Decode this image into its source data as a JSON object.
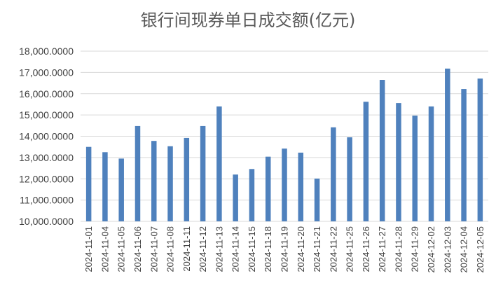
{
  "chart_data": {
    "type": "bar",
    "title": "银行间现券单日成交额(亿元)",
    "xlabel": "",
    "ylabel": "",
    "ylim": [
      10000,
      18000
    ],
    "yticks": [
      "10,000.0000",
      "11,000.0000",
      "12,000.0000",
      "13,000.0000",
      "14,000.0000",
      "15,000.0000",
      "16,000.0000",
      "17,000.0000",
      "18,000.0000"
    ],
    "grid": true,
    "legend": "none",
    "bar_color": "#4f81bd",
    "categories": [
      "2024-11-01",
      "2024-11-04",
      "2024-11-05",
      "2024-11-06",
      "2024-11-07",
      "2024-11-08",
      "2024-11-11",
      "2024-11-12",
      "2024-11-13",
      "2024-11-14",
      "2024-11-15",
      "2024-11-18",
      "2024-11-19",
      "2024-11-20",
      "2024-11-21",
      "2024-11-22",
      "2024-11-25",
      "2024-11-26",
      "2024-11-27",
      "2024-11-28",
      "2024-11-29",
      "2024-12-02",
      "2024-12-03",
      "2024-12-04",
      "2024-12-05"
    ],
    "values": [
      13500,
      13250,
      12950,
      14480,
      13780,
      13530,
      13920,
      14480,
      15400,
      12200,
      12460,
      13040,
      13420,
      13230,
      12010,
      14420,
      13950,
      15620,
      16650,
      15560,
      14970,
      15400,
      17180,
      16220,
      16710
    ]
  }
}
